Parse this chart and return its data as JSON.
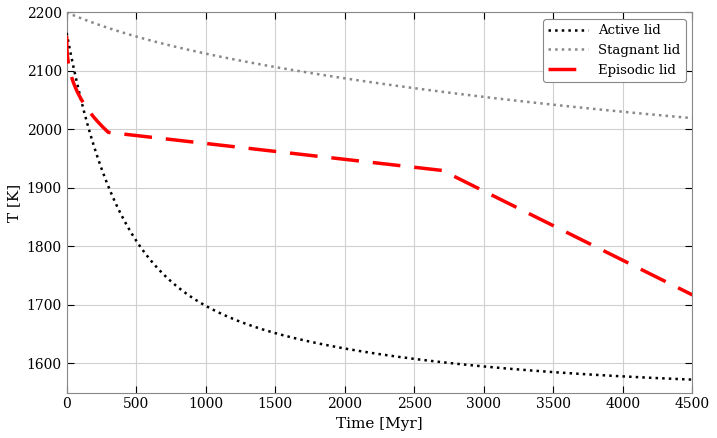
{
  "xlabel": "Time [Myr]",
  "ylabel": "T [K]",
  "xlim": [
    0,
    4500
  ],
  "ylim": [
    1550,
    2200
  ],
  "yticks": [
    1600,
    1700,
    1800,
    1900,
    2000,
    2100,
    2200
  ],
  "xticks": [
    0,
    500,
    1000,
    1500,
    2000,
    2500,
    3000,
    3500,
    4000,
    4500
  ],
  "bg_color": "#ffffff",
  "grid_color": "#d0d0d0",
  "active_color": "#000000",
  "stagnant_color": "#888888",
  "episodic_color": "#ff0000",
  "legend_labels": [
    "Active lid",
    "Stagnant lid",
    "Episodic lid"
  ]
}
